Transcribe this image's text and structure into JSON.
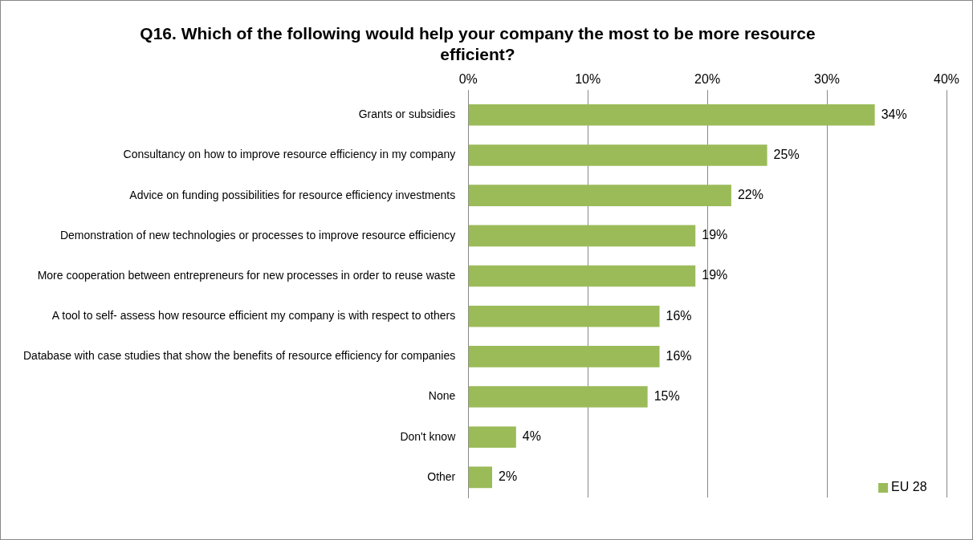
{
  "chart_data": {
    "type": "bar",
    "orientation": "horizontal",
    "title": "Q16. Which of the following would help your company the most to be more resource efficient?",
    "categories": [
      "Grants or subsidies",
      "Consultancy on how to improve resource efficiency in my company",
      "Advice on funding possibilities for resource efficiency investments",
      "Demonstration of new technologies or processes to improve resource efficiency",
      "More cooperation between entrepreneurs for new processes in order to reuse waste",
      "A tool to self- assess how resource efficient my company is with respect to others",
      "Database with case studies that show the benefits of resource efficiency for companies",
      "None",
      "Don't know",
      "Other"
    ],
    "series": [
      {
        "name": "EU 28",
        "color": "#9bbb59",
        "values": [
          34,
          25,
          22,
          19,
          19,
          16,
          16,
          15,
          4,
          2
        ],
        "value_labels": [
          "34%",
          "25%",
          "22%",
          "19%",
          "19%",
          "16%",
          "16%",
          "15%",
          "4%",
          "2%"
        ]
      }
    ],
    "xlim": [
      0,
      40
    ],
    "xticks": [
      {
        "value": 0,
        "label": "0%"
      },
      {
        "value": 10,
        "label": "10%"
      },
      {
        "value": 20,
        "label": "20%"
      },
      {
        "value": 30,
        "label": "30%"
      },
      {
        "value": 40,
        "label": "40%"
      }
    ],
    "grid": "x",
    "legend": "bottom right"
  }
}
